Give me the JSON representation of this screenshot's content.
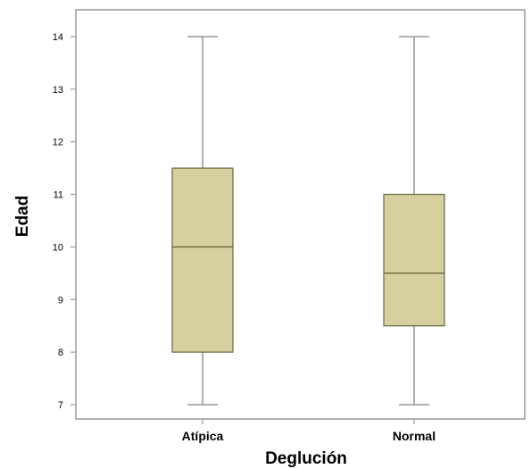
{
  "chart_data": {
    "type": "boxplot",
    "xlabel": "Deglución",
    "ylabel": "Edad",
    "ylim": [
      6.8,
      14.5
    ],
    "yticks": [
      7,
      8,
      9,
      10,
      11,
      12,
      13,
      14
    ],
    "grid": false,
    "categories": [
      "Atípica",
      "Normal"
    ],
    "boxes": [
      {
        "category": "Atípica",
        "min": 7,
        "q1": 8,
        "median": 10,
        "q3": 11.5,
        "max": 14
      },
      {
        "category": "Normal",
        "min": 7,
        "q1": 8.5,
        "median": 9.5,
        "q3": 11,
        "max": 14
      }
    ],
    "colors": {
      "box_fill": "#d6cf9e",
      "box_stroke": "#6b6440",
      "whisker": "#999999",
      "frame": "#999999"
    }
  }
}
